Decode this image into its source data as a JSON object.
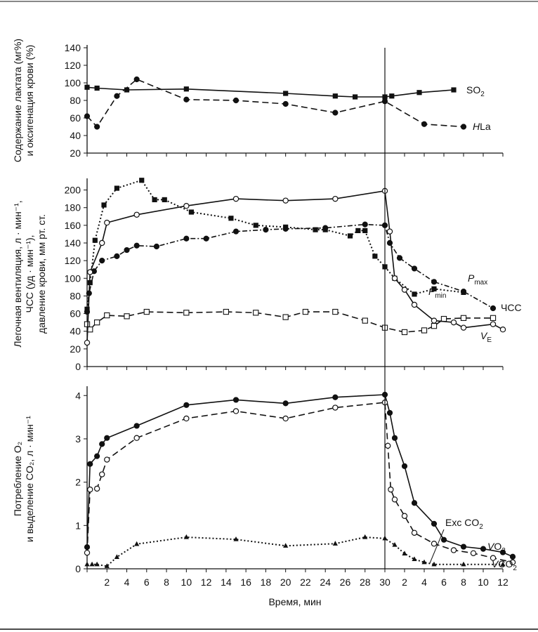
{
  "chart_data": [
    {
      "id": "top",
      "type": "line",
      "ylabel_lines": [
        "Содержание лактата (мг%)",
        "и оксигенация крови (%)"
      ],
      "ylim": [
        20,
        140
      ],
      "yticks": [
        20,
        40,
        60,
        80,
        100,
        120,
        140
      ],
      "series": [
        {
          "key": "so2",
          "label": "SO",
          "label_sub": "2",
          "style": "solid",
          "marker": "square-filled",
          "points": [
            [
              0,
              95
            ],
            [
              1,
              94
            ],
            [
              4,
              92
            ],
            [
              10,
              93
            ],
            [
              20,
              88
            ],
            [
              25,
              85
            ],
            [
              27,
              84
            ],
            [
              30,
              84
            ],
            [
              30.7,
              85
            ],
            [
              33.5,
              89
            ],
            [
              37,
              92
            ]
          ]
        },
        {
          "key": "hla",
          "label": "HLa",
          "label_italic_prefix": "H",
          "style": "dashed",
          "marker": "circle-filled",
          "points": [
            [
              0,
              62
            ],
            [
              1,
              50
            ],
            [
              3,
              85
            ],
            [
              5,
              104
            ],
            [
              10,
              81
            ],
            [
              15,
              80
            ],
            [
              20,
              76
            ],
            [
              25,
              66
            ],
            [
              30,
              79
            ],
            [
              34,
              53
            ],
            [
              38,
              50
            ]
          ]
        }
      ]
    },
    {
      "id": "middle",
      "type": "line",
      "ylabel_lines": [
        "Легочная вентиляция, л · мин⁻¹,",
        "ЧСС (уд · мин⁻¹),",
        "давление крови, мм рт. ст."
      ],
      "ylim": [
        0,
        210
      ],
      "yticks": [
        0,
        20,
        40,
        60,
        80,
        100,
        120,
        140,
        160,
        180,
        200
      ],
      "series": [
        {
          "key": "pmax",
          "label": "P",
          "label_sub": "max",
          "style": "dotted",
          "marker": "square-filled",
          "points": [
            [
              0,
              65
            ],
            [
              0.3,
              95
            ],
            [
              0.8,
              143
            ],
            [
              1.7,
              183
            ],
            [
              3,
              202
            ],
            [
              5.5,
              211
            ],
            [
              6.8,
              189
            ],
            [
              7.8,
              189
            ],
            [
              10.5,
              175
            ],
            [
              14.5,
              168
            ],
            [
              17,
              160
            ],
            [
              20,
              158
            ],
            [
              23,
              155
            ],
            [
              24,
              155
            ],
            [
              26.5,
              148
            ],
            [
              27.3,
              154
            ],
            [
              28,
              154
            ],
            [
              29,
              125
            ],
            [
              30,
              113
            ],
            [
              31,
              100
            ],
            [
              33,
              82
            ],
            [
              35,
              88
            ],
            [
              38,
              84
            ]
          ]
        },
        {
          "key": "pmin",
          "label": "P",
          "label_sub": "min",
          "style": "dashed",
          "marker": "square-open",
          "points": [
            [
              0,
              48
            ],
            [
              0.3,
              42
            ],
            [
              1,
              50
            ],
            [
              2,
              58
            ],
            [
              4,
              57
            ],
            [
              6,
              62
            ],
            [
              10,
              61
            ],
            [
              14,
              62
            ],
            [
              17,
              61
            ],
            [
              20,
              56
            ],
            [
              22,
              62
            ],
            [
              25,
              62
            ],
            [
              28,
              52
            ],
            [
              30,
              44
            ],
            [
              32,
              39
            ],
            [
              34,
              41
            ],
            [
              35,
              46
            ],
            [
              36,
              54
            ],
            [
              38,
              55
            ],
            [
              41,
              55
            ]
          ]
        },
        {
          "key": "chss",
          "label": "ЧСС",
          "style": "dash-dot",
          "marker": "circle-filled",
          "points": [
            [
              0,
              62
            ],
            [
              0.2,
              83
            ],
            [
              0.7,
              108
            ],
            [
              1.5,
              120
            ],
            [
              3,
              125
            ],
            [
              4,
              132
            ],
            [
              5,
              137
            ],
            [
              7,
              136
            ],
            [
              10,
              145
            ],
            [
              12,
              145
            ],
            [
              15,
              153
            ],
            [
              18,
              155
            ],
            [
              20,
              156
            ],
            [
              24,
              157
            ],
            [
              28,
              161
            ],
            [
              30,
              160
            ],
            [
              30.5,
              140
            ],
            [
              31.5,
              123
            ],
            [
              33,
              111
            ],
            [
              35,
              96
            ],
            [
              38,
              85
            ],
            [
              41,
              66
            ]
          ]
        },
        {
          "key": "ve",
          "label": "V",
          "label_sub": "E",
          "style": "solid",
          "marker": "circle-open",
          "points": [
            [
              0,
              27
            ],
            [
              0.3,
              107
            ],
            [
              1.5,
              140
            ],
            [
              2,
              163
            ],
            [
              5,
              172
            ],
            [
              10,
              182
            ],
            [
              15,
              190
            ],
            [
              20,
              188
            ],
            [
              25,
              190
            ],
            [
              30,
              199
            ],
            [
              30.5,
              153
            ],
            [
              31,
              100
            ],
            [
              32,
              87
            ],
            [
              33,
              70
            ],
            [
              35,
              52
            ],
            [
              37,
              50
            ],
            [
              38,
              44
            ],
            [
              41,
              48
            ],
            [
              42,
              42
            ]
          ]
        }
      ]
    },
    {
      "id": "bottom",
      "type": "line",
      "ylabel_lines": [
        "Потребление O₂",
        "и выделение CO₂, л · мин⁻¹"
      ],
      "ylim": [
        0,
        4.15
      ],
      "yticks": [
        0,
        1,
        2,
        3,
        4
      ],
      "xlabel": "Время, мин",
      "xtick_labels": [
        "2",
        "4",
        "6",
        "8",
        "10",
        "12",
        "14",
        "16",
        "18",
        "20",
        "22",
        "24",
        "26",
        "28",
        "30",
        "2",
        "4",
        "6",
        "8",
        "10",
        "12"
      ],
      "series": [
        {
          "key": "vo2",
          "label": "VO",
          "label_sub": "2",
          "style": "solid",
          "marker": "circle-filled",
          "points": [
            [
              0,
              0.5
            ],
            [
              0.3,
              2.42
            ],
            [
              1,
              2.6
            ],
            [
              1.5,
              2.88
            ],
            [
              2,
              3.02
            ],
            [
              5,
              3.3
            ],
            [
              10,
              3.78
            ],
            [
              15,
              3.9
            ],
            [
              20,
              3.82
            ],
            [
              25,
              3.96
            ],
            [
              30,
              4.02
            ],
            [
              30.5,
              3.6
            ],
            [
              31,
              3.02
            ],
            [
              32,
              2.37
            ],
            [
              33,
              1.52
            ],
            [
              35,
              1.04
            ],
            [
              36,
              0.67
            ],
            [
              38,
              0.51
            ],
            [
              40,
              0.46
            ],
            [
              42,
              0.38
            ],
            [
              43,
              0.28
            ]
          ]
        },
        {
          "key": "vco2",
          "label": "VCO",
          "label_sub": "2",
          "style": "dashed",
          "marker": "circle-open",
          "points": [
            [
              0,
              0.37
            ],
            [
              0.3,
              1.83
            ],
            [
              1,
              1.85
            ],
            [
              1.5,
              2.18
            ],
            [
              2,
              2.52
            ],
            [
              5,
              3.02
            ],
            [
              10,
              3.47
            ],
            [
              15,
              3.64
            ],
            [
              20,
              3.47
            ],
            [
              25,
              3.72
            ],
            [
              30,
              3.84
            ],
            [
              30.3,
              2.84
            ],
            [
              30.6,
              1.83
            ],
            [
              31,
              1.6
            ],
            [
              32,
              1.22
            ],
            [
              33,
              0.83
            ],
            [
              35,
              0.58
            ],
            [
              37,
              0.43
            ],
            [
              39,
              0.36
            ],
            [
              41,
              0.25
            ],
            [
              43,
              0.15
            ]
          ]
        },
        {
          "key": "exc",
          "label": "Exc CO",
          "label_sub": "2",
          "style": "dotted",
          "marker": "triangle-filled",
          "points": [
            [
              0,
              0.1
            ],
            [
              0.5,
              0.1
            ],
            [
              1,
              0.1
            ],
            [
              2,
              0.06
            ],
            [
              3,
              0.27
            ],
            [
              5,
              0.57
            ],
            [
              10,
              0.73
            ],
            [
              15,
              0.68
            ],
            [
              20,
              0.53
            ],
            [
              25,
              0.58
            ],
            [
              28,
              0.73
            ],
            [
              30,
              0.7
            ],
            [
              31,
              0.55
            ],
            [
              32,
              0.35
            ],
            [
              33,
              0.22
            ],
            [
              34,
              0.15
            ],
            [
              35,
              0.1
            ],
            [
              38,
              0.1
            ],
            [
              42,
              0.1
            ]
          ]
        }
      ]
    }
  ]
}
